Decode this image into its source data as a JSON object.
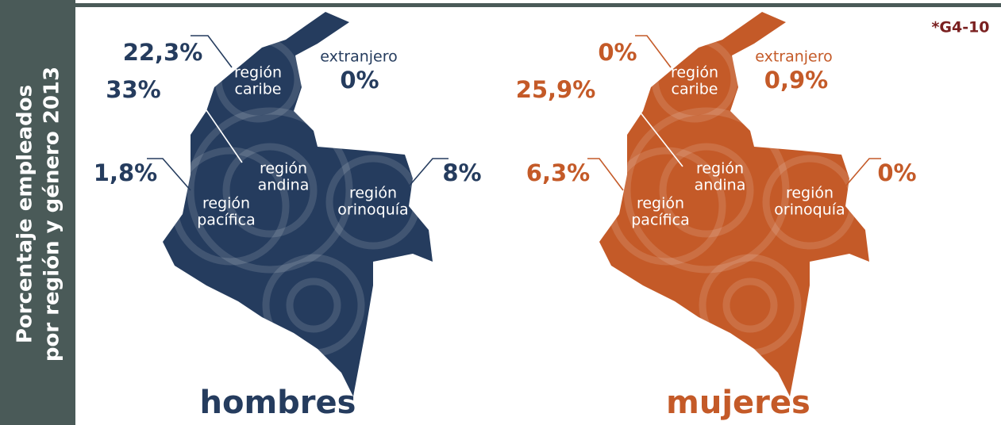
{
  "side_title": [
    "Porcentaje empleados",
    "por región y género 2013"
  ],
  "tag": "*G4-10",
  "maps": [
    {
      "label": "hombres",
      "color": "#253c5e",
      "regions": [
        {
          "name": [
            "región",
            "caribe"
          ],
          "value": "22,3%"
        },
        {
          "name": [
            "región",
            "andina"
          ],
          "value": "33%"
        },
        {
          "name": [
            "región",
            "pacífica"
          ],
          "value": "1,8%"
        },
        {
          "name": [
            "región",
            "orinoquía"
          ],
          "value": "8%"
        },
        {
          "name": [
            "extranjero"
          ],
          "value": "0%"
        }
      ]
    },
    {
      "label": "mujeres",
      "color": "#c45a28",
      "regions": [
        {
          "name": [
            "región",
            "caribe"
          ],
          "value": "0%"
        },
        {
          "name": [
            "región",
            "andina"
          ],
          "value": "25,9%"
        },
        {
          "name": [
            "región",
            "pacífica"
          ],
          "value": "6,3%"
        },
        {
          "name": [
            "región",
            "orinoquía"
          ],
          "value": "0%"
        },
        {
          "name": [
            "extranjero"
          ],
          "value": "0,9%"
        }
      ]
    }
  ]
}
